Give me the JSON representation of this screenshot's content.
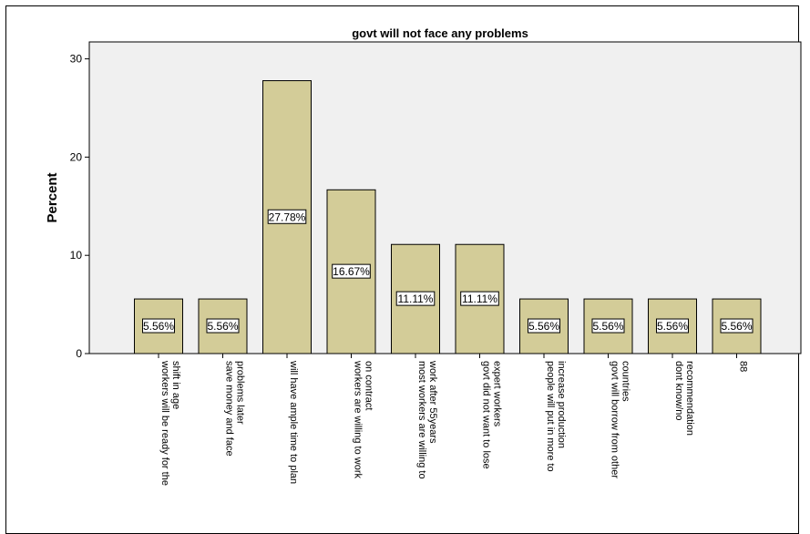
{
  "chart_data": {
    "type": "bar",
    "title": "govt will not face any problems",
    "ylabel": "Percent",
    "xlabel": "",
    "ylim": [
      0,
      31
    ],
    "yticks": [
      0,
      10,
      20,
      30
    ],
    "grid": false,
    "colors": {
      "bar": "#d3cc98",
      "plot_bg": "#f0f0f0",
      "bar_stroke": "#000000"
    },
    "categories": [
      [
        "workers will be ready for the",
        "shift in age"
      ],
      [
        "save money and face",
        "problems later"
      ],
      [
        "will have ample time to plan"
      ],
      [
        "workers are willing to work",
        "on contract"
      ],
      [
        "most workers are willing to",
        "work after 55years"
      ],
      [
        "govt did not want to lose",
        "expert workers"
      ],
      [
        "people will put in more to",
        "increase production"
      ],
      [
        "govt will borrow from other",
        "countries"
      ],
      [
        "dont know/no",
        "recommendation"
      ],
      [
        "88"
      ]
    ],
    "values": [
      5.56,
      5.56,
      27.78,
      16.67,
      11.11,
      11.11,
      5.56,
      5.56,
      5.56,
      5.56
    ],
    "data_labels": [
      "5.56%",
      "5.56%",
      "27.78%",
      "16.67%",
      "11.11%",
      "11.11%",
      "5.56%",
      "5.56%",
      "5.56%",
      "5.56%"
    ]
  }
}
